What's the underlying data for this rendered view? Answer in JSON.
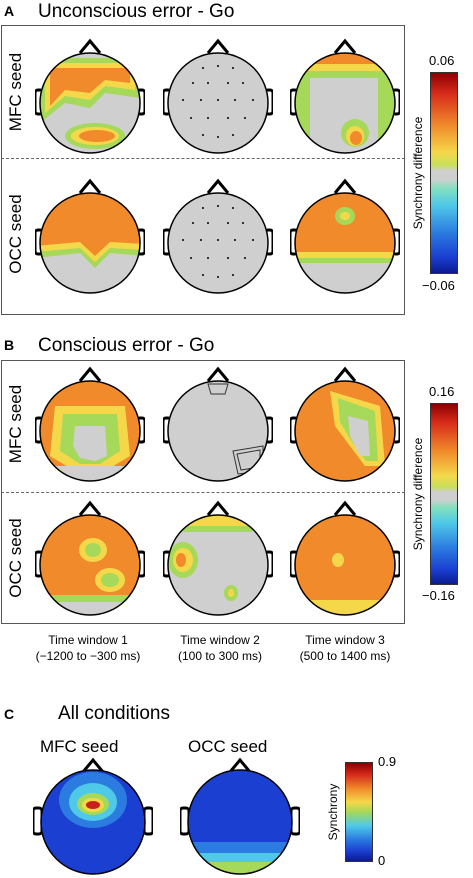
{
  "panels": {
    "a": {
      "letter": "A",
      "title": "Unconscious error - Go"
    },
    "b": {
      "letter": "B",
      "title": "Conscious error - Go"
    },
    "c": {
      "letter": "C",
      "title": "All conditions"
    }
  },
  "row_labels": {
    "mfc": "MFC seed",
    "occ": "OCC seed"
  },
  "colorbar_ab": {
    "label": "Synchrony difference",
    "a_max": "0.06",
    "a_min": "−0.06",
    "b_max": "0.16",
    "b_min": "−0.16"
  },
  "colorbar_c": {
    "label": "Synchrony",
    "max": "0.9",
    "min": "0"
  },
  "time_windows": [
    {
      "name": "Time window 1",
      "range": "(−1200 to −300 ms)"
    },
    {
      "name": "Time window 2",
      "range": "(100 to 300 ms)"
    },
    {
      "name": "Time window 3",
      "range": "(500 to 1400 ms)"
    }
  ],
  "colors": {
    "grey_nonsig": "#cfcfcf",
    "orange": "#f08a2b",
    "yellow": "#f4d84a",
    "green": "#a6d85a",
    "red": "#c8201a",
    "blue": "#1a3fd1",
    "cyan": "#4fc9e8"
  }
}
